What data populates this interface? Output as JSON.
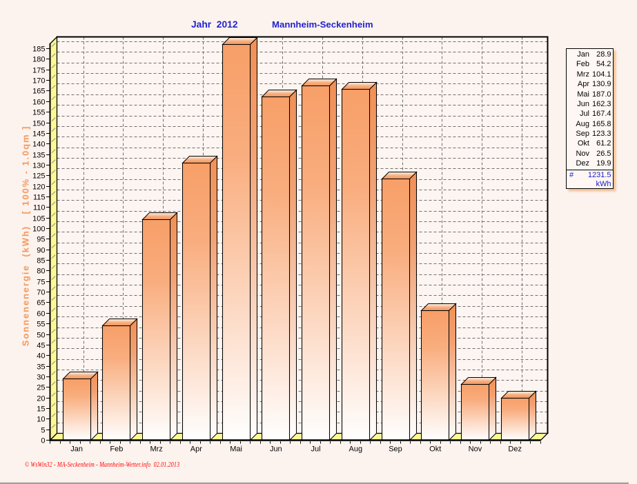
{
  "page": {
    "background": "#FCF3EE",
    "plot_background": "#FDF5F1"
  },
  "titles": {
    "left": "Jahr  2012",
    "right": "Mannheim-Seckenheim",
    "color": "#2222CE"
  },
  "footer": {
    "text": "© WsWin32 - MA-Seckenheim - Mannheim-Wetter.info  02.01.2013",
    "color": "#FF0000"
  },
  "chart_data": {
    "type": "bar",
    "title": "Jahr 2012 Mannheim-Seckenheim",
    "categories": [
      "Jan",
      "Feb",
      "Mrz",
      "Apr",
      "Mai",
      "Jun",
      "Jul",
      "Aug",
      "Sep",
      "Okt",
      "Nov",
      "Dez"
    ],
    "values": [
      28.9,
      54.2,
      104.1,
      130.9,
      187.0,
      162.3,
      167.4,
      165.8,
      123.3,
      61.2,
      26.5,
      19.9
    ],
    "xlabel": "",
    "ylabel": "Sonnenenergie  (kWh)   [ 100% - 1.0qm ]",
    "ylim": [
      0,
      187.3
    ],
    "ytick_step": 5,
    "grid": true,
    "legend": false,
    "style_3d": true,
    "colors": {
      "bar_front_top": "#F79F68",
      "bar_front_mid": "#F9AD7E",
      "bar_front_bottom": "#FFFFFF",
      "bar_side_top": "#F19055",
      "bar_side_mid": "#F2A172",
      "bar_side_bottom": "#FFFFFF",
      "bar_top_back": "#FCF3EA",
      "bar_top_mid": "#F6AC7C",
      "bar_top_front": "#F2975F",
      "wall_floor": "#FBF896",
      "grid_line": "#6F6F6F",
      "frame_line": "#000000",
      "axis_text": "#000000"
    }
  },
  "table": {
    "rows": [
      {
        "month": "Jan",
        "value": "28.9"
      },
      {
        "month": "Feb",
        "value": "54.2"
      },
      {
        "month": "Mrz",
        "value": "104.1"
      },
      {
        "month": "Apr",
        "value": "130.9"
      },
      {
        "month": "Mai",
        "value": "187.0"
      },
      {
        "month": "Jun",
        "value": "162.3"
      },
      {
        "month": "Jul",
        "value": "167.4"
      },
      {
        "month": "Aug",
        "value": "165.8"
      },
      {
        "month": "Sep",
        "value": "123.3"
      },
      {
        "month": "Okt",
        "value": "61.2"
      },
      {
        "month": "Nov",
        "value": "26.5"
      },
      {
        "month": "Dez",
        "value": "19.9"
      }
    ],
    "total_label": "#",
    "total_value": "1231.5",
    "unit": "kWh",
    "total_color": "#1A1AC8"
  }
}
